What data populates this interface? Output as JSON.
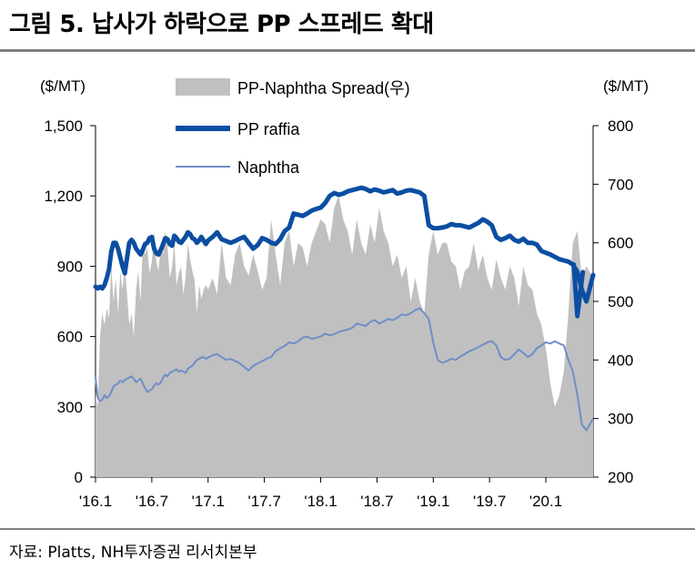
{
  "title": "그림 5. 납사가 하락으로 PP 스프레드 확대",
  "source": "자료: Platts, NH투자증권 리서치본부",
  "chart_data": {
    "type": "line",
    "left_axis": {
      "unit_label": "($/MT)",
      "range": [
        0,
        1500
      ],
      "ticks": [
        0,
        300,
        600,
        900,
        1200,
        1500
      ],
      "tick_labels": [
        "0",
        "300",
        "600",
        "900",
        "1,200",
        "1,500"
      ]
    },
    "right_axis": {
      "unit_label": "($/MT)",
      "range": [
        200,
        800
      ],
      "ticks": [
        200,
        300,
        400,
        500,
        600,
        700,
        800
      ],
      "tick_labels": [
        "200",
        "300",
        "400",
        "500",
        "600",
        "700",
        "800"
      ]
    },
    "x_range": [
      2016.0,
      2020.42
    ],
    "x_ticks": [
      2016.0,
      2016.5,
      2017.0,
      2017.5,
      2018.0,
      2018.5,
      2019.0,
      2019.5,
      2020.0
    ],
    "x_tick_labels": [
      "'16.1",
      "'16.7",
      "'17.1",
      "'17.7",
      "'18.1",
      "'18.7",
      "'19.1",
      "'19.7",
      "'20.1"
    ],
    "legend": [
      "PP-Naphtha Spread(우)",
      "PP raffia",
      "Naphtha"
    ],
    "colors": {
      "spread": "#c0c0c0",
      "pp": "#0b4ea2",
      "naphtha": "#6f8ec7"
    },
    "series": [
      {
        "name": "PP-Naphtha Spread(우)",
        "axis": "left",
        "style": "area",
        "x": [
          2016.0,
          2016.02,
          2016.04,
          2016.06,
          2016.08,
          2016.1,
          2016.12,
          2016.14,
          2016.16,
          2016.18,
          2016.2,
          2016.22,
          2016.24,
          2016.26,
          2016.28,
          2016.3,
          2016.32,
          2016.34,
          2016.36,
          2016.38,
          2016.4,
          2016.42,
          2016.44,
          2016.46,
          2016.48,
          2016.5,
          2016.52,
          2016.54,
          2016.56,
          2016.58,
          2016.6,
          2016.62,
          2016.64,
          2016.66,
          2016.68,
          2016.7,
          2016.72,
          2016.74,
          2016.76,
          2016.78,
          2016.8,
          2016.82,
          2016.84,
          2016.86,
          2016.88,
          2016.9,
          2016.92,
          2016.94,
          2016.96,
          2016.98,
          2017.0,
          2017.04,
          2017.08,
          2017.12,
          2017.16,
          2017.2,
          2017.24,
          2017.28,
          2017.32,
          2017.36,
          2017.4,
          2017.44,
          2017.48,
          2017.52,
          2017.56,
          2017.6,
          2017.64,
          2017.68,
          2017.72,
          2017.76,
          2017.8,
          2017.84,
          2017.88,
          2017.92,
          2017.96,
          2018.0,
          2018.04,
          2018.08,
          2018.12,
          2018.16,
          2018.2,
          2018.24,
          2018.28,
          2018.32,
          2018.36,
          2018.4,
          2018.44,
          2018.48,
          2018.52,
          2018.56,
          2018.6,
          2018.64,
          2018.68,
          2018.72,
          2018.76,
          2018.8,
          2018.84,
          2018.88,
          2018.92,
          2018.96,
          2019.0,
          2019.04,
          2019.08,
          2019.12,
          2019.16,
          2019.2,
          2019.24,
          2019.28,
          2019.32,
          2019.36,
          2019.4,
          2019.44,
          2019.48,
          2019.52,
          2019.56,
          2019.6,
          2019.64,
          2019.68,
          2019.72,
          2019.76,
          2019.8,
          2019.84,
          2019.88,
          2019.92,
          2019.96,
          2020.0,
          2020.04,
          2020.08,
          2020.12,
          2020.16,
          2020.2,
          2020.24,
          2020.28,
          2020.32,
          2020.36,
          2020.42
        ],
        "values": [
          350,
          300,
          600,
          700,
          650,
          720,
          680,
          900,
          750,
          850,
          700,
          880,
          800,
          900,
          780,
          650,
          700,
          600,
          800,
          880,
          750,
          1000,
          950,
          980,
          870,
          920,
          1050,
          920,
          880,
          1000,
          950,
          1050,
          980,
          850,
          900,
          1000,
          820,
          870,
          900,
          780,
          850,
          1000,
          930,
          880,
          840,
          700,
          820,
          760,
          800,
          820,
          800,
          850,
          780,
          1000,
          850,
          820,
          950,
          1000,
          900,
          860,
          950,
          880,
          800,
          850,
          1100,
          950,
          820,
          1000,
          1050,
          900,
          1000,
          980,
          900,
          1000,
          1050,
          1100,
          1080,
          1000,
          1150,
          1200,
          1100,
          1050,
          950,
          1100,
          1000,
          950,
          1080,
          1000,
          1150,
          1050,
          1000,
          900,
          950,
          850,
          900,
          750,
          850,
          750,
          700,
          950,
          1050,
          950,
          1000,
          1000,
          920,
          900,
          800,
          880,
          900,
          1000,
          880,
          950,
          850,
          800,
          930,
          850,
          800,
          900,
          850,
          730,
          900,
          820,
          800,
          700,
          650,
          550,
          400,
          300,
          350,
          450,
          700,
          1000,
          1050,
          850,
          900,
          850
        ]
      },
      {
        "name": "PP raffia",
        "axis": "right",
        "style": "line",
        "x": [
          2016.0,
          2016.02,
          2016.04,
          2016.06,
          2016.08,
          2016.1,
          2016.12,
          2016.14,
          2016.16,
          2016.18,
          2016.2,
          2016.22,
          2016.24,
          2016.26,
          2016.28,
          2016.3,
          2016.32,
          2016.34,
          2016.36,
          2016.38,
          2016.4,
          2016.42,
          2016.44,
          2016.46,
          2016.48,
          2016.5,
          2016.52,
          2016.54,
          2016.56,
          2016.58,
          2016.6,
          2016.62,
          2016.64,
          2016.66,
          2016.68,
          2016.7,
          2016.72,
          2016.74,
          2016.76,
          2016.78,
          2016.8,
          2016.82,
          2016.84,
          2016.86,
          2016.88,
          2016.9,
          2016.92,
          2016.94,
          2016.96,
          2016.98,
          2017.0,
          2017.04,
          2017.08,
          2017.12,
          2017.16,
          2017.2,
          2017.24,
          2017.28,
          2017.32,
          2017.36,
          2017.4,
          2017.44,
          2017.48,
          2017.52,
          2017.56,
          2017.6,
          2017.64,
          2017.68,
          2017.72,
          2017.76,
          2017.8,
          2017.84,
          2017.88,
          2017.92,
          2017.96,
          2018.0,
          2018.04,
          2018.08,
          2018.12,
          2018.16,
          2018.2,
          2018.24,
          2018.28,
          2018.32,
          2018.36,
          2018.4,
          2018.44,
          2018.48,
          2018.52,
          2018.56,
          2018.6,
          2018.64,
          2018.68,
          2018.72,
          2018.76,
          2018.8,
          2018.84,
          2018.88,
          2018.92,
          2018.96,
          2019.0,
          2019.04,
          2019.08,
          2019.12,
          2019.16,
          2019.2,
          2019.24,
          2019.28,
          2019.32,
          2019.36,
          2019.4,
          2019.44,
          2019.48,
          2019.52,
          2019.56,
          2019.6,
          2019.64,
          2019.68,
          2019.72,
          2019.76,
          2019.8,
          2019.84,
          2019.88,
          2019.92,
          2019.96,
          2020.0,
          2020.04,
          2020.08,
          2020.12,
          2020.16,
          2020.2,
          2020.24,
          2020.28,
          2020.32,
          2020.36,
          2020.42
        ],
        "values": [
          525,
          522,
          525,
          522,
          528,
          540,
          555,
          585,
          600,
          600,
          590,
          575,
          560,
          548,
          575,
          600,
          605,
          600,
          590,
          585,
          580,
          588,
          598,
          600,
          608,
          610,
          590,
          582,
          580,
          588,
          598,
          608,
          606,
          598,
          595,
          612,
          608,
          602,
          600,
          605,
          610,
          618,
          615,
          608,
          606,
          600,
          604,
          610,
          604,
          598,
          604,
          610,
          618,
          606,
          603,
          600,
          603,
          607,
          610,
          600,
          590,
          596,
          608,
          605,
          600,
          598,
          606,
          620,
          626,
          650,
          648,
          646,
          650,
          655,
          658,
          660,
          668,
          680,
          685,
          682,
          684,
          688,
          690,
          692,
          694,
          692,
          688,
          691,
          689,
          686,
          688,
          690,
          684,
          686,
          689,
          690,
          688,
          686,
          680,
          630,
          625,
          625,
          626,
          628,
          632,
          630,
          630,
          628,
          626,
          630,
          634,
          640,
          636,
          630,
          610,
          605,
          608,
          612,
          605,
          602,
          607,
          600,
          600,
          597,
          586,
          583,
          580,
          576,
          572,
          570,
          568,
          563,
          550,
          520,
          500,
          545
        ],
        "annotations": [
          {
            "x": 2020.28,
            "value": 475
          }
        ]
      },
      {
        "name": "Naphtha",
        "axis": "right",
        "style": "line",
        "x": [
          2016.0,
          2016.02,
          2016.04,
          2016.06,
          2016.08,
          2016.1,
          2016.12,
          2016.14,
          2016.16,
          2016.18,
          2016.2,
          2016.22,
          2016.24,
          2016.26,
          2016.28,
          2016.3,
          2016.32,
          2016.34,
          2016.36,
          2016.38,
          2016.4,
          2016.42,
          2016.44,
          2016.46,
          2016.48,
          2016.5,
          2016.52,
          2016.54,
          2016.56,
          2016.58,
          2016.6,
          2016.62,
          2016.64,
          2016.66,
          2016.68,
          2016.7,
          2016.72,
          2016.74,
          2016.76,
          2016.78,
          2016.8,
          2016.82,
          2016.84,
          2016.86,
          2016.88,
          2016.9,
          2016.92,
          2016.94,
          2016.96,
          2016.98,
          2017.0,
          2017.04,
          2017.08,
          2017.12,
          2017.16,
          2017.2,
          2017.24,
          2017.28,
          2017.32,
          2017.36,
          2017.4,
          2017.44,
          2017.48,
          2017.52,
          2017.56,
          2017.6,
          2017.64,
          2017.68,
          2017.72,
          2017.76,
          2017.8,
          2017.84,
          2017.88,
          2017.92,
          2017.96,
          2018.0,
          2018.04,
          2018.08,
          2018.12,
          2018.16,
          2018.2,
          2018.24,
          2018.28,
          2018.32,
          2018.36,
          2018.4,
          2018.44,
          2018.48,
          2018.52,
          2018.56,
          2018.6,
          2018.64,
          2018.68,
          2018.72,
          2018.76,
          2018.8,
          2018.84,
          2018.88,
          2018.92,
          2018.96,
          2019.0,
          2019.04,
          2019.08,
          2019.12,
          2019.16,
          2019.2,
          2019.24,
          2019.28,
          2019.32,
          2019.36,
          2019.4,
          2019.44,
          2019.48,
          2019.52,
          2019.56,
          2019.6,
          2019.64,
          2019.68,
          2019.72,
          2019.76,
          2019.8,
          2019.84,
          2019.88,
          2019.92,
          2019.96,
          2020.0,
          2020.04,
          2020.08,
          2020.12,
          2020.16,
          2020.2,
          2020.24,
          2020.28,
          2020.32,
          2020.36,
          2020.42
        ],
        "values": [
          370,
          335,
          330,
          332,
          340,
          335,
          338,
          345,
          355,
          358,
          360,
          365,
          362,
          366,
          368,
          370,
          372,
          368,
          362,
          365,
          368,
          360,
          352,
          345,
          348,
          350,
          356,
          360,
          358,
          362,
          370,
          375,
          372,
          378,
          380,
          382,
          384,
          380,
          382,
          380,
          378,
          385,
          388,
          390,
          395,
          400,
          402,
          404,
          405,
          402,
          404,
          408,
          410,
          405,
          400,
          402,
          398,
          395,
          388,
          382,
          390,
          394,
          398,
          402,
          405,
          415,
          420,
          424,
          430,
          428,
          432,
          438,
          440,
          436,
          438,
          440,
          445,
          442,
          444,
          448,
          450,
          452,
          455,
          462,
          460,
          458,
          465,
          468,
          462,
          466,
          470,
          468,
          472,
          478,
          476,
          480,
          485,
          488,
          480,
          470,
          430,
          400,
          395,
          398,
          402,
          400,
          406,
          410,
          415,
          418,
          422,
          426,
          430,
          432,
          425,
          405,
          400,
          402,
          410,
          418,
          412,
          405,
          410,
          420,
          425,
          430,
          428,
          432,
          428,
          425,
          400,
          380,
          340,
          290,
          280,
          300
        ]
      }
    ]
  }
}
